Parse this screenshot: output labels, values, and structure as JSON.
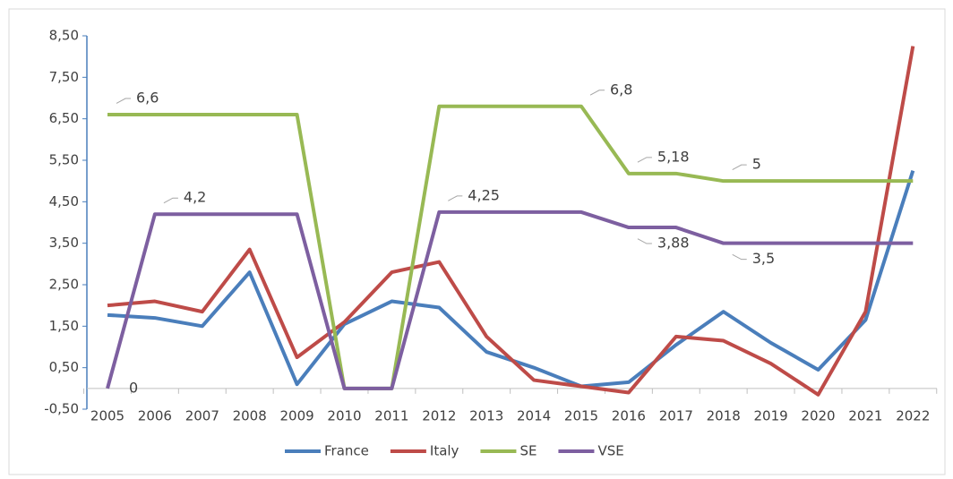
{
  "chart_data": {
    "type": "line",
    "categories": [
      "2005",
      "2006",
      "2007",
      "2008",
      "2009",
      "2010",
      "2011",
      "2012",
      "2013",
      "2014",
      "2015",
      "2016",
      "2017",
      "2018",
      "2019",
      "2020",
      "2021",
      "2022"
    ],
    "ylim": [
      -0.5,
      8.5
    ],
    "yticks": [
      {
        "value": -0.5,
        "label": "-0,50"
      },
      {
        "value": 0.5,
        "label": "0,50"
      },
      {
        "value": 1.5,
        "label": "1,50"
      },
      {
        "value": 2.5,
        "label": "2,50"
      },
      {
        "value": 3.5,
        "label": "3,50"
      },
      {
        "value": 4.5,
        "label": "4,50"
      },
      {
        "value": 5.5,
        "label": "5,50"
      },
      {
        "value": 6.5,
        "label": "6,50"
      },
      {
        "value": 7.5,
        "label": "7,50"
      },
      {
        "value": 8.5,
        "label": "8,50"
      }
    ],
    "legend": "bottom",
    "series": [
      {
        "name": "France",
        "color": "#4a7ebb",
        "values": [
          1.77,
          1.7,
          1.5,
          2.8,
          0.1,
          1.55,
          2.1,
          1.95,
          0.88,
          0.5,
          0.05,
          0.15,
          1.05,
          1.85,
          1.1,
          0.45,
          1.65,
          5.25
        ]
      },
      {
        "name": "Italy",
        "color": "#be4b48",
        "values": [
          2.0,
          2.1,
          1.85,
          3.35,
          0.75,
          1.6,
          2.8,
          3.05,
          1.25,
          0.2,
          0.05,
          -0.1,
          1.25,
          1.15,
          0.6,
          -0.15,
          1.85,
          8.25
        ]
      },
      {
        "name": "SE",
        "color": "#98b954",
        "values": [
          6.6,
          6.6,
          6.6,
          6.6,
          6.6,
          0,
          0,
          6.8,
          6.8,
          6.8,
          6.8,
          5.18,
          5.18,
          5,
          5,
          5,
          5,
          5
        ],
        "value_labels": [
          "6,6",
          null,
          null,
          null,
          null,
          null,
          null,
          null,
          null,
          null,
          "6,8",
          "5,18",
          null,
          "5",
          null,
          null,
          null,
          null
        ]
      },
      {
        "name": "VSE",
        "color": "#7d5fa0",
        "values": [
          0,
          4.2,
          4.2,
          4.2,
          4.2,
          0,
          0,
          4.25,
          4.25,
          4.25,
          4.25,
          3.88,
          3.88,
          3.5,
          3.5,
          3.5,
          3.5,
          3.5
        ],
        "value_labels": [
          "0",
          "4,2",
          null,
          null,
          null,
          null,
          null,
          "4,25",
          null,
          null,
          null,
          "3,88",
          null,
          "3,5",
          null,
          null,
          null,
          null
        ]
      }
    ]
  }
}
